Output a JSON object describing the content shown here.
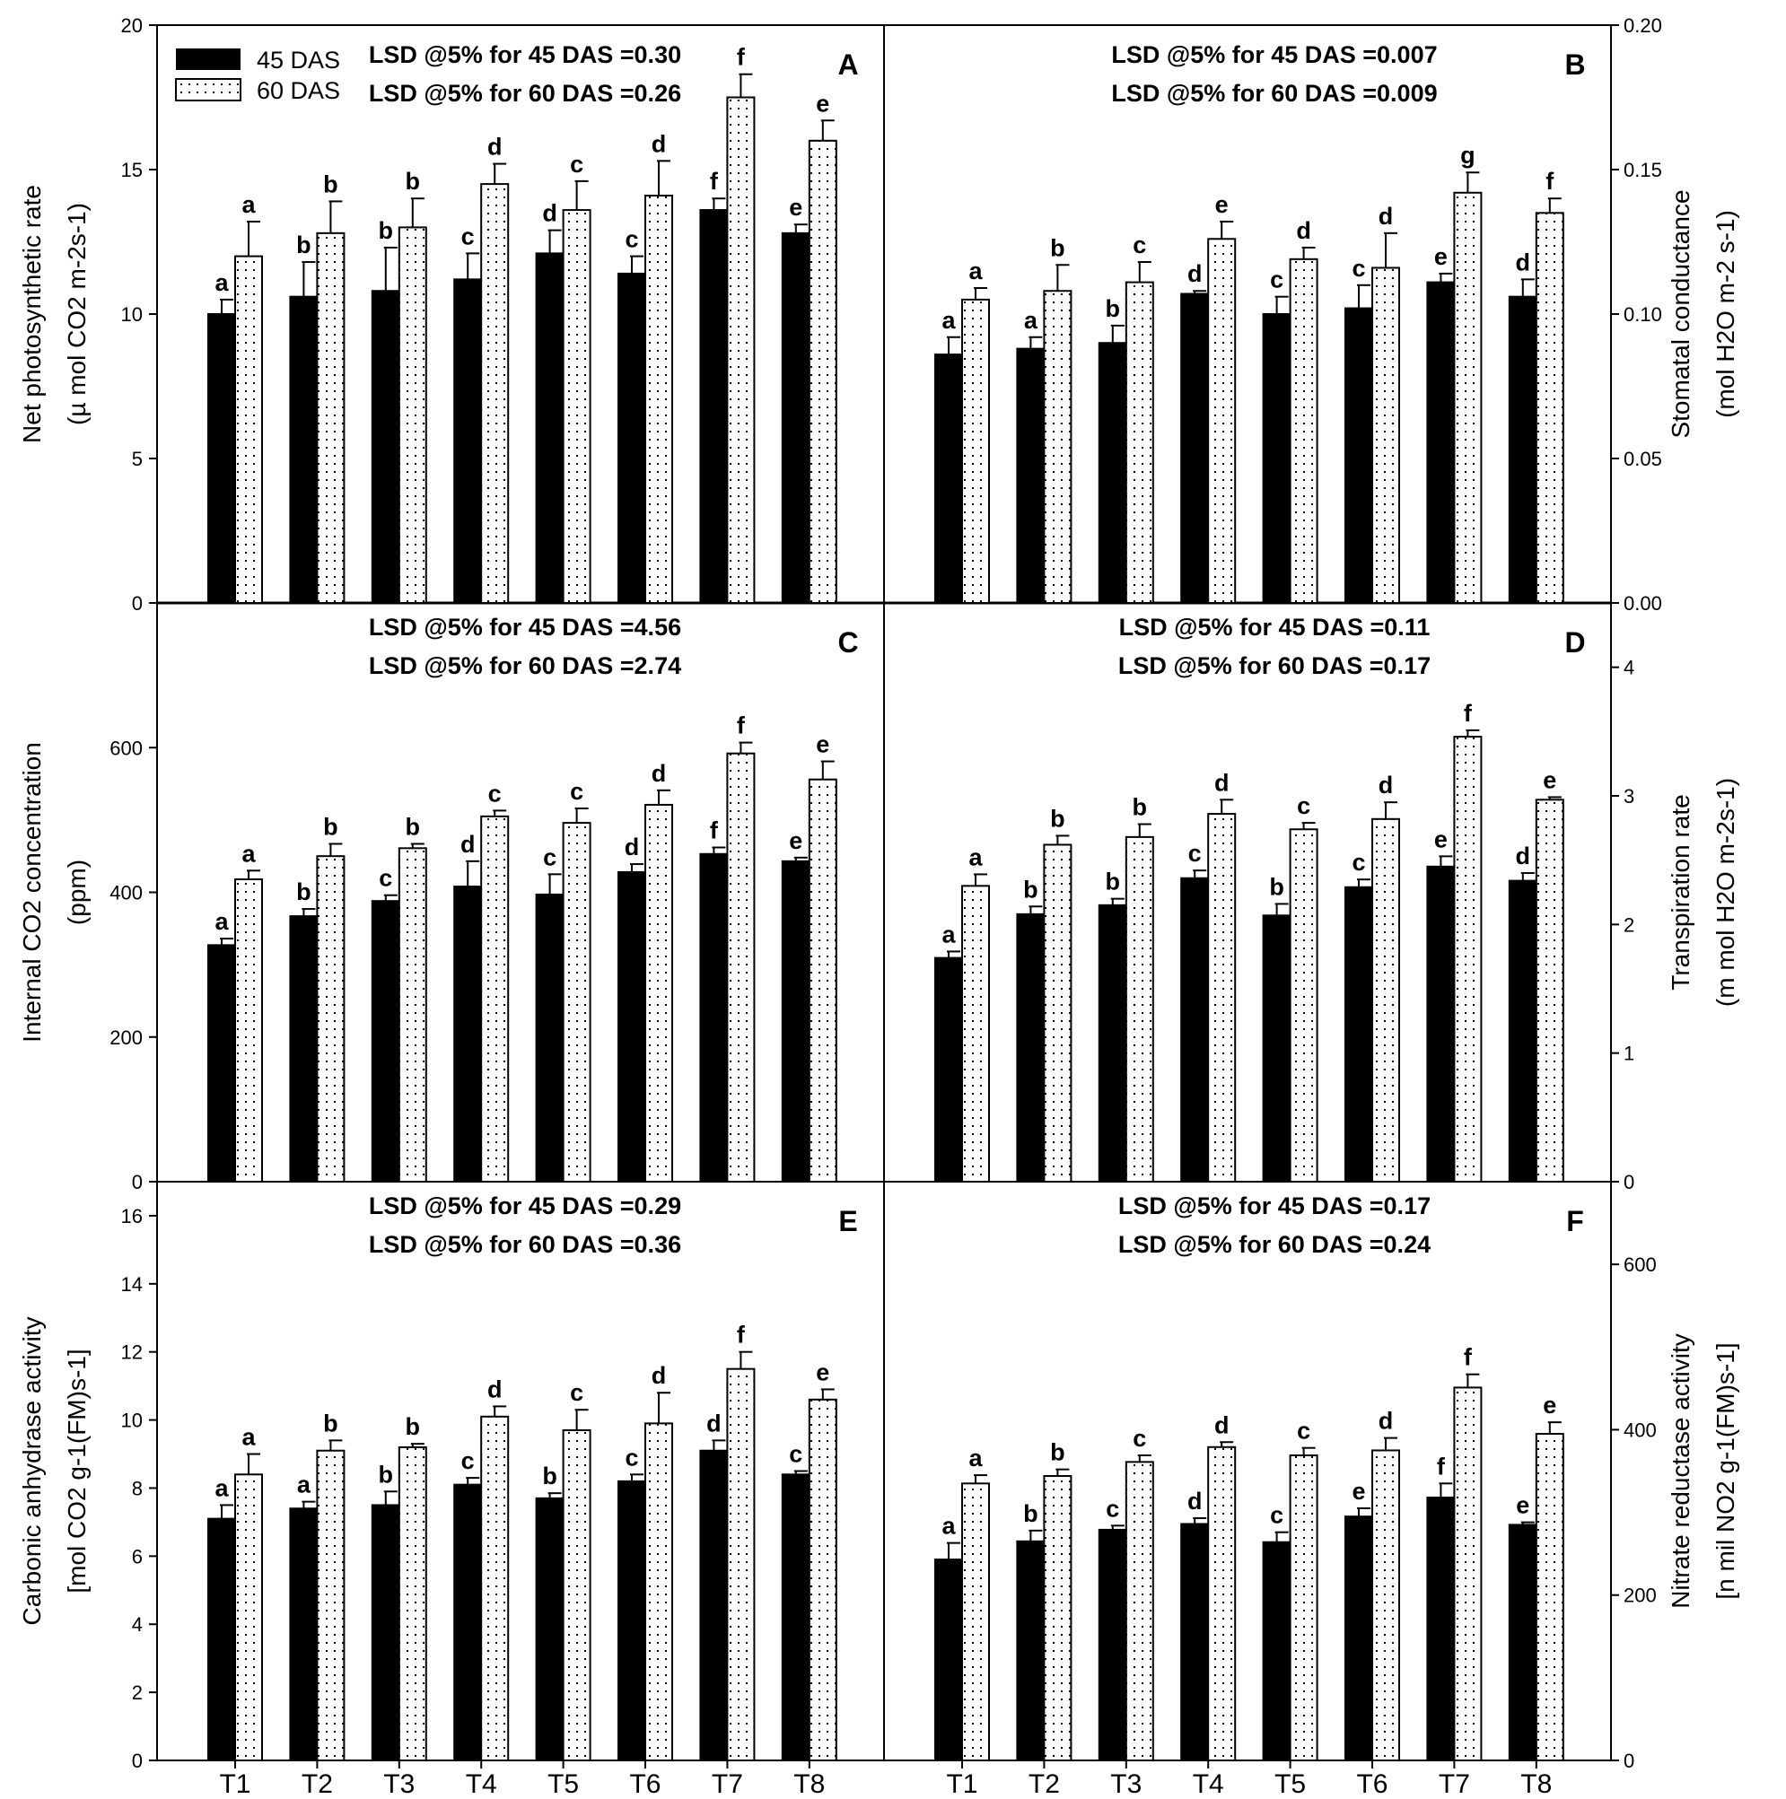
{
  "legend": {
    "series1": "45 DAS",
    "series2": "60 DAS"
  },
  "chart_data": [
    {
      "type": "bar",
      "panel": "A",
      "axis_side": "left",
      "title": "",
      "lsd45": "LSD @5% for 45 DAS =0.30",
      "lsd60": "LSD @5% for 60 DAS =0.26",
      "ylabel1": "Net photosynthetic rate",
      "ylabel2": "(µ mol CO2 m-2s-1)",
      "ylim": [
        0,
        20
      ],
      "yticks": [
        0,
        5,
        10,
        15,
        20
      ],
      "categories": [
        "T1",
        "T2",
        "T3",
        "T4",
        "T5",
        "T6",
        "T7",
        "T8"
      ],
      "series": [
        {
          "name": "45 DAS",
          "values": [
            10.0,
            10.6,
            10.8,
            11.2,
            12.1,
            11.4,
            13.6,
            12.8
          ],
          "errors": [
            0.5,
            1.2,
            1.5,
            0.9,
            0.8,
            0.6,
            0.4,
            0.3
          ],
          "letters": [
            "a",
            "b",
            "b",
            "c",
            "d",
            "c",
            "f",
            "e"
          ]
        },
        {
          "name": "60 DAS",
          "values": [
            12.0,
            12.8,
            13.0,
            14.5,
            13.6,
            14.1,
            17.5,
            16.0
          ],
          "errors": [
            1.2,
            1.1,
            1.0,
            0.7,
            1.0,
            1.2,
            0.8,
            0.7
          ],
          "letters": [
            "a",
            "b",
            "b",
            "d",
            "c",
            "d",
            "f",
            "e"
          ]
        }
      ]
    },
    {
      "type": "bar",
      "panel": "B",
      "axis_side": "right",
      "title": "",
      "lsd45": "LSD @5% for 45 DAS =0.007",
      "lsd60": "LSD @5% for 60 DAS =0.009",
      "ylabel1": "Stomatal conductance",
      "ylabel2": "(mol H2O m-2 s-1)",
      "ylim": [
        0,
        0.2
      ],
      "yticks": [
        0.0,
        0.05,
        0.1,
        0.15,
        0.2
      ],
      "ytick_labels": [
        "0.00",
        "0.05",
        "0.10",
        "0.15",
        "0.20"
      ],
      "categories": [
        "T1",
        "T2",
        "T3",
        "T4",
        "T5",
        "T6",
        "T7",
        "T8"
      ],
      "series": [
        {
          "name": "45 DAS",
          "values": [
            0.086,
            0.088,
            0.09,
            0.107,
            0.1,
            0.102,
            0.111,
            0.106
          ],
          "errors": [
            0.006,
            0.004,
            0.006,
            0.001,
            0.006,
            0.008,
            0.003,
            0.006
          ],
          "letters": [
            "a",
            "a",
            "b",
            "d",
            "c",
            "c",
            "e",
            "d"
          ]
        },
        {
          "name": "60 DAS",
          "values": [
            0.105,
            0.108,
            0.111,
            0.126,
            0.119,
            0.116,
            0.142,
            0.135
          ],
          "errors": [
            0.004,
            0.009,
            0.007,
            0.006,
            0.004,
            0.012,
            0.007,
            0.005
          ],
          "letters": [
            "a",
            "b",
            "c",
            "e",
            "d",
            "d",
            "g",
            "f"
          ]
        }
      ]
    },
    {
      "type": "bar",
      "panel": "C",
      "axis_side": "left",
      "title": "",
      "lsd45": "LSD @5% for 45 DAS =4.56",
      "lsd60": "LSD @5% for 60 DAS =2.74",
      "ylabel1": "Internal CO2 concentration",
      "ylabel2": "(ppm)",
      "ylim": [
        0,
        800
      ],
      "yticks": [
        0,
        200,
        400,
        600
      ],
      "categories": [
        "T1",
        "T2",
        "T3",
        "T4",
        "T5",
        "T6",
        "T7",
        "T8"
      ],
      "series": [
        {
          "name": "45 DAS",
          "values": [
            327,
            367,
            388,
            408,
            397,
            428,
            453,
            443
          ],
          "errors": [
            9,
            10,
            8,
            35,
            28,
            11,
            9,
            5
          ],
          "letters": [
            "a",
            "b",
            "c",
            "d",
            "c",
            "d",
            "f",
            "e"
          ]
        },
        {
          "name": "60 DAS",
          "values": [
            418,
            450,
            461,
            505,
            496,
            521,
            592,
            556
          ],
          "errors": [
            12,
            17,
            6,
            8,
            20,
            20,
            15,
            25
          ],
          "letters": [
            "a",
            "b",
            "b",
            "c",
            "c",
            "d",
            "f",
            "e"
          ]
        }
      ]
    },
    {
      "type": "bar",
      "panel": "D",
      "axis_side": "right",
      "title": "",
      "lsd45": "LSD @5% for 45 DAS =0.11",
      "lsd60": "LSD @5% for 60 DAS =0.17",
      "ylabel1": "Transpiration rate",
      "ylabel2": "(m mol H2O m-2s-1)",
      "ylim": [
        0,
        4.5
      ],
      "yticks": [
        0,
        1,
        2,
        3,
        4
      ],
      "categories": [
        "T1",
        "T2",
        "T3",
        "T4",
        "T5",
        "T6",
        "T7",
        "T8"
      ],
      "series": [
        {
          "name": "45 DAS",
          "values": [
            1.74,
            2.08,
            2.15,
            2.36,
            2.07,
            2.29,
            2.45,
            2.34
          ],
          "errors": [
            0.05,
            0.06,
            0.05,
            0.06,
            0.09,
            0.06,
            0.08,
            0.06
          ],
          "letters": [
            "a",
            "b",
            "b",
            "c",
            "b",
            "c",
            "e",
            "d"
          ]
        },
        {
          "name": "60 DAS",
          "values": [
            2.3,
            2.62,
            2.68,
            2.86,
            2.74,
            2.82,
            3.46,
            2.97
          ],
          "errors": [
            0.09,
            0.07,
            0.1,
            0.11,
            0.05,
            0.13,
            0.05,
            0.02
          ],
          "letters": [
            "a",
            "b",
            "b",
            "d",
            "c",
            "d",
            "f",
            "e"
          ]
        }
      ]
    },
    {
      "type": "bar",
      "panel": "E",
      "axis_side": "left",
      "title": "",
      "lsd45": "LSD @5% for 45 DAS =0.29",
      "lsd60": "LSD @5% for 60 DAS =0.36",
      "ylabel1": "Carbonic anhydrase activity",
      "ylabel2": "[mol CO2 g-1(FM)s-1]",
      "ylim": [
        0,
        17
      ],
      "yticks": [
        0,
        2,
        4,
        6,
        8,
        10,
        12,
        14,
        16
      ],
      "categories": [
        "T1",
        "T2",
        "T3",
        "T4",
        "T5",
        "T6",
        "T7",
        "T8"
      ],
      "series": [
        {
          "name": "45 DAS",
          "values": [
            7.1,
            7.4,
            7.5,
            8.1,
            7.7,
            8.2,
            9.1,
            8.4
          ],
          "errors": [
            0.4,
            0.2,
            0.4,
            0.2,
            0.15,
            0.2,
            0.3,
            0.1
          ],
          "letters": [
            "a",
            "a",
            "b",
            "c",
            "b",
            "c",
            "d",
            "c"
          ]
        },
        {
          "name": "60 DAS",
          "values": [
            8.4,
            9.1,
            9.2,
            10.1,
            9.7,
            9.9,
            11.5,
            10.6
          ],
          "errors": [
            0.6,
            0.3,
            0.1,
            0.3,
            0.6,
            0.9,
            0.5,
            0.3
          ],
          "letters": [
            "a",
            "b",
            "b",
            "d",
            "c",
            "d",
            "f",
            "e"
          ]
        }
      ]
    },
    {
      "type": "bar",
      "panel": "F",
      "axis_side": "right",
      "title": "",
      "lsd45": "LSD @5% for 45 DAS =0.17",
      "lsd60": "LSD @5% for 60 DAS =0.24",
      "ylabel1": "Nitrate reductase activity",
      "ylabel2": "[n mil NO2 g-1(FM)s-1]",
      "ylim": [
        0,
        700
      ],
      "yticks": [
        0,
        200,
        400,
        600
      ],
      "categories": [
        "T1",
        "T2",
        "T3",
        "T4",
        "T5",
        "T6",
        "T7",
        "T8"
      ],
      "series": [
        {
          "name": "45 DAS",
          "values": [
            243,
            265,
            279,
            286,
            264,
            295,
            318,
            285
          ],
          "errors": [
            20,
            13,
            5,
            7,
            12,
            10,
            17,
            3
          ],
          "letters": [
            "a",
            "b",
            "c",
            "d",
            "c",
            "e",
            "f",
            "e"
          ]
        },
        {
          "name": "60 DAS",
          "values": [
            335,
            344,
            361,
            379,
            369,
            375,
            451,
            395
          ],
          "errors": [
            10,
            8,
            8,
            6,
            9,
            15,
            16,
            14
          ],
          "letters": [
            "a",
            "b",
            "c",
            "d",
            "c",
            "d",
            "f",
            "e"
          ]
        }
      ]
    }
  ]
}
